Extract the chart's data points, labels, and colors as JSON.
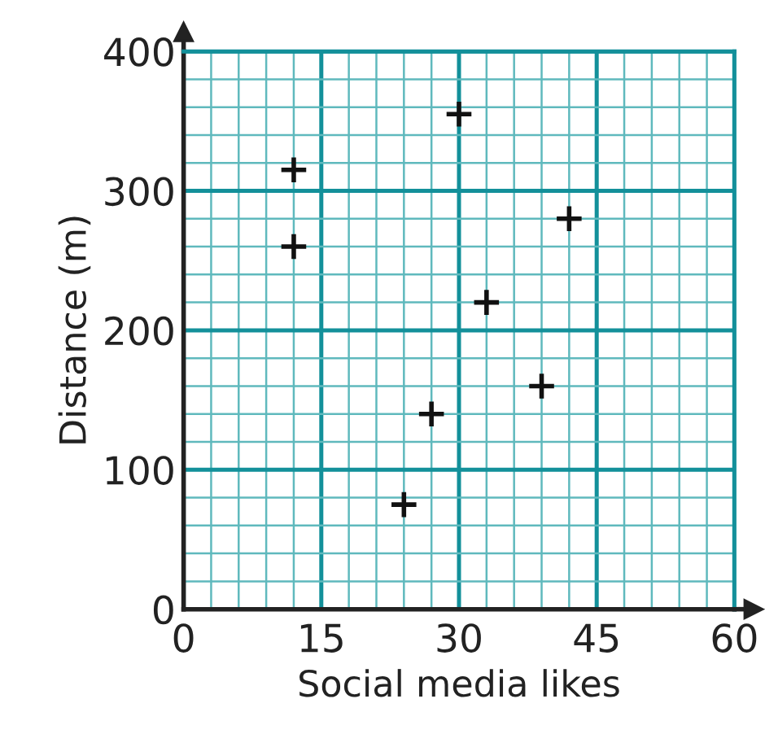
{
  "chart_data": {
    "type": "scatter",
    "xlabel": "Social media likes",
    "ylabel": "Distance (m)",
    "x": [
      12,
      12,
      30,
      42,
      33,
      39,
      27,
      24
    ],
    "values": [
      315,
      260,
      355,
      280,
      220,
      160,
      140,
      75
    ],
    "color": "#111111",
    "marker": "cross",
    "xlim": [
      0,
      60
    ],
    "ylim": [
      0,
      400
    ],
    "xticks": [
      0,
      {
        "value": 3,
        "label": null
      },
      {
        "value": 6,
        "label": null
      },
      {
        "value": 9,
        "label": null
      },
      {
        "value": 12,
        "label": null
      },
      15,
      {
        "value": 18,
        "label": null
      },
      {
        "value": 21,
        "label": null
      },
      {
        "value": 24,
        "label": null
      },
      {
        "value": 27,
        "label": null
      },
      30,
      {
        "value": 33,
        "label": null
      },
      {
        "value": 36,
        "label": null
      },
      {
        "value": 39,
        "label": null
      },
      {
        "value": 42,
        "label": null
      },
      45,
      {
        "value": 48,
        "label": null
      },
      {
        "value": 51,
        "label": null
      },
      {
        "value": 54,
        "label": null
      },
      {
        "value": 57,
        "label": null
      },
      60
    ],
    "yticks": [
      0,
      {
        "value": 20,
        "label": null
      },
      {
        "value": 40,
        "label": null
      },
      {
        "value": 60,
        "label": null
      },
      {
        "value": 80,
        "label": null
      },
      100,
      {
        "value": 120,
        "label": null
      },
      {
        "value": 140,
        "label": null
      },
      {
        "value": 160,
        "label": null
      },
      {
        "value": 180,
        "label": null
      },
      200,
      {
        "value": 220,
        "label": null
      },
      {
        "value": 240,
        "label": null
      },
      {
        "value": 260,
        "label": null
      },
      {
        "value": 280,
        "label": null
      },
      300,
      {
        "value": 320,
        "label": null
      },
      {
        "value": 340,
        "label": null
      },
      {
        "value": 360,
        "label": null
      },
      {
        "value": 380,
        "label": null
      },
      400
    ],
    "grid": true
  }
}
